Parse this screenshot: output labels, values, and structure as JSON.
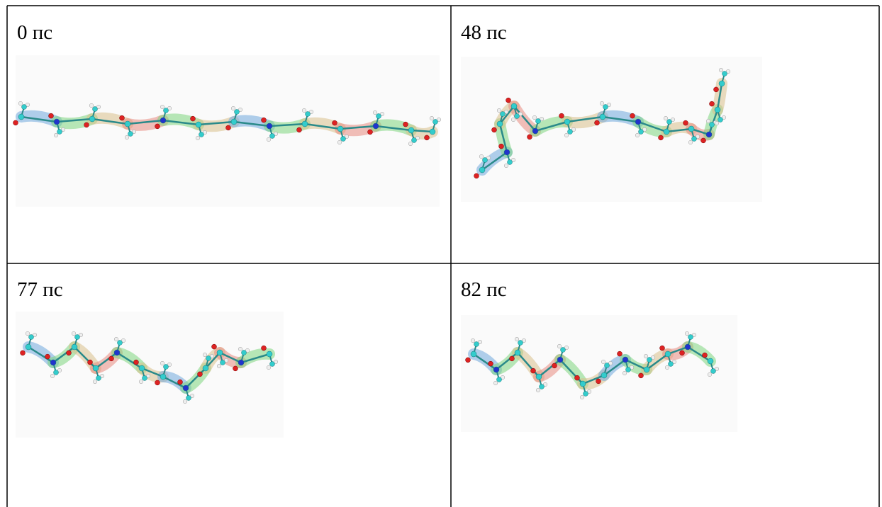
{
  "table": {
    "rows": [
      [
        "0 пс",
        "48 пс"
      ],
      [
        "77 пс",
        "82 пс"
      ]
    ]
  }
}
